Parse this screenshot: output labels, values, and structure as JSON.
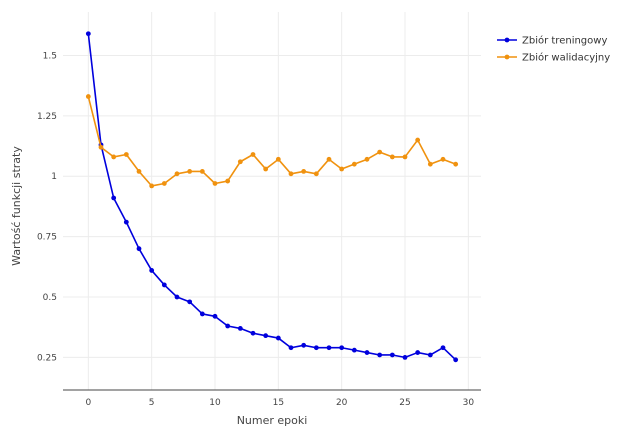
{
  "chart_data": {
    "type": "line",
    "title": "",
    "xlabel": "Numer epoki",
    "ylabel": "Wartość funkcji straty",
    "xlim": [
      -2,
      31
    ],
    "ylim": [
      0.115,
      1.68
    ],
    "x_ticks": [
      0,
      5,
      10,
      15,
      20,
      25,
      30
    ],
    "y_ticks": [
      0.25,
      0.5,
      0.75,
      1,
      1.25,
      1.5
    ],
    "y_tick_labels": [
      "0.25",
      "0.5",
      "0.75",
      "1",
      "1.25",
      "1.5"
    ],
    "grid": true,
    "legend_position": "top-right",
    "x": [
      0,
      1,
      2,
      3,
      4,
      5,
      6,
      7,
      8,
      9,
      10,
      11,
      12,
      13,
      14,
      15,
      16,
      17,
      18,
      19,
      20,
      21,
      22,
      23,
      24,
      25,
      26,
      27,
      28,
      29
    ],
    "series": [
      {
        "name": "Zbiór treningowy",
        "color": "#0000dd",
        "values": [
          1.59,
          1.13,
          0.91,
          0.81,
          0.7,
          0.61,
          0.55,
          0.5,
          0.48,
          0.43,
          0.42,
          0.38,
          0.37,
          0.35,
          0.34,
          0.33,
          0.29,
          0.3,
          0.29,
          0.29,
          0.29,
          0.28,
          0.27,
          0.26,
          0.26,
          0.25,
          0.27,
          0.26,
          0.29,
          0.24
        ]
      },
      {
        "name": "Zbiór walidacyjny",
        "color": "#f0920f",
        "values": [
          1.33,
          1.12,
          1.08,
          1.09,
          1.02,
          0.96,
          0.97,
          1.01,
          1.02,
          1.02,
          0.97,
          0.98,
          1.06,
          1.09,
          1.03,
          1.07,
          1.01,
          1.02,
          1.01,
          1.07,
          1.03,
          1.05,
          1.07,
          1.1,
          1.08,
          1.08,
          1.15,
          1.05,
          1.07,
          1.05
        ]
      }
    ]
  }
}
